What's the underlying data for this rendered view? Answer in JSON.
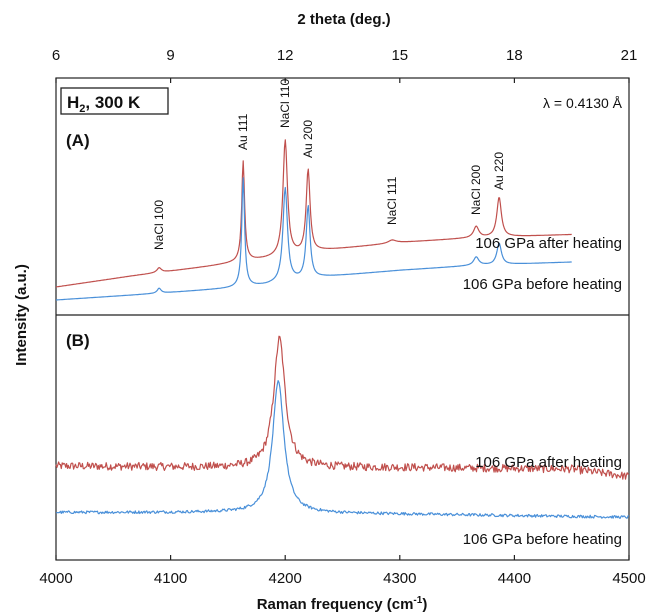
{
  "chart_data": {
    "type": "line",
    "top_axis": {
      "title": "2 theta (deg.)",
      "range": [
        6,
        21
      ],
      "ticks": [
        6,
        9,
        12,
        15,
        18,
        21
      ],
      "tick_labels": [
        "6",
        "9",
        "12",
        "15",
        "18",
        "21"
      ]
    },
    "bottom_axis": {
      "title_main": "Raman frequency (cm",
      "title_sup": "-1",
      "title_end": ")",
      "range": [
        4000,
        4500
      ],
      "ticks": [
        4000,
        4100,
        4200,
        4300,
        4400,
        4500
      ],
      "tick_labels": [
        "4000",
        "4100",
        "4200",
        "4300",
        "4400",
        "4500"
      ]
    },
    "ylabel": "Intensity (a.u.)",
    "condition_box": {
      "main": "H",
      "sub": "2",
      "rest": ", 300 K"
    },
    "wavelength_label": "λ = 0.4130 Å",
    "colors": {
      "after": "#c0504d",
      "before": "#4a90d9"
    },
    "panels": [
      {
        "label": "(A)",
        "x_axis": "2 theta (deg.)",
        "peaks": [
          {
            "label": "NaCl 100",
            "x": 8.7
          },
          {
            "label": "Au 111",
            "x": 10.9
          },
          {
            "label": "NaCl 110",
            "x": 12.0
          },
          {
            "label": "Au 200",
            "x": 12.6
          },
          {
            "label": "NaCl 111",
            "x": 14.8
          },
          {
            "label": "NaCl 200",
            "x": 17.0
          },
          {
            "label": "Au 220",
            "x": 17.6
          }
        ],
        "series": [
          {
            "name": "106 GPa after heating",
            "color_key": "after",
            "x_range": [
              6,
              19.5
            ],
            "baseline": [
              [
                6,
                0.0
              ],
              [
                8,
                0.07
              ],
              [
                10,
                0.13
              ],
              [
                10.9,
                0.16
              ],
              [
                12,
                0.19
              ],
              [
                13,
                0.23
              ],
              [
                15,
                0.28
              ],
              [
                17,
                0.31
              ],
              [
                19.5,
                0.33
              ]
            ],
            "peaks": [
              {
                "x": 8.7,
                "height": 0.03,
                "width": 0.07
              },
              {
                "x": 10.9,
                "height": 0.63,
                "width": 0.045
              },
              {
                "x": 12.0,
                "height": 0.73,
                "width": 0.07
              },
              {
                "x": 12.6,
                "height": 0.52,
                "width": 0.06
              },
              {
                "x": 14.8,
                "height": 0.02,
                "width": 0.12
              },
              {
                "x": 17.0,
                "height": 0.07,
                "width": 0.08
              },
              {
                "x": 17.6,
                "height": 0.25,
                "width": 0.07
              }
            ]
          },
          {
            "name": "106 GPa before heating",
            "color_key": "before",
            "x_range": [
              6,
              19.5
            ],
            "baseline": [
              [
                6,
                0.0
              ],
              [
                8,
                0.03
              ],
              [
                10.5,
                0.07
              ],
              [
                11.5,
                0.09
              ],
              [
                13,
                0.14
              ],
              [
                15,
                0.18
              ],
              [
                17,
                0.21
              ],
              [
                19.5,
                0.23
              ]
            ],
            "peaks": [
              {
                "x": 8.7,
                "height": 0.03,
                "width": 0.06
              },
              {
                "x": 10.9,
                "height": 0.66,
                "width": 0.045
              },
              {
                "x": 12.0,
                "height": 0.57,
                "width": 0.07
              },
              {
                "x": 12.6,
                "height": 0.44,
                "width": 0.06
              },
              {
                "x": 17.0,
                "height": 0.05,
                "width": 0.08
              },
              {
                "x": 17.6,
                "height": 0.13,
                "width": 0.07
              }
            ]
          }
        ]
      },
      {
        "label": "(B)",
        "x_axis": "Raman frequency (cm-1)",
        "series": [
          {
            "name": "106 GPa after heating",
            "color_key": "after",
            "x_range": [
              4000,
              4500
            ],
            "baseline": [
              [
                4000,
                0.16
              ],
              [
                4150,
                0.15
              ],
              [
                4300,
                0.15
              ],
              [
                4450,
                0.14
              ],
              [
                4500,
                0.09
              ]
            ],
            "peaks": [
              {
                "x": 4195,
                "height": 0.86,
                "width": 6
              }
            ],
            "noise": 0.012
          },
          {
            "name": "106 GPa before heating",
            "color_key": "before",
            "x_range": [
              4000,
              4500
            ],
            "baseline": [
              [
                4000,
                0.06
              ],
              [
                4150,
                0.06
              ],
              [
                4300,
                0.05
              ],
              [
                4500,
                0.03
              ]
            ],
            "peaks": [
              {
                "x": 4194,
                "height": 0.82,
                "width": 6
              }
            ],
            "noise": 0.004
          }
        ]
      }
    ]
  }
}
